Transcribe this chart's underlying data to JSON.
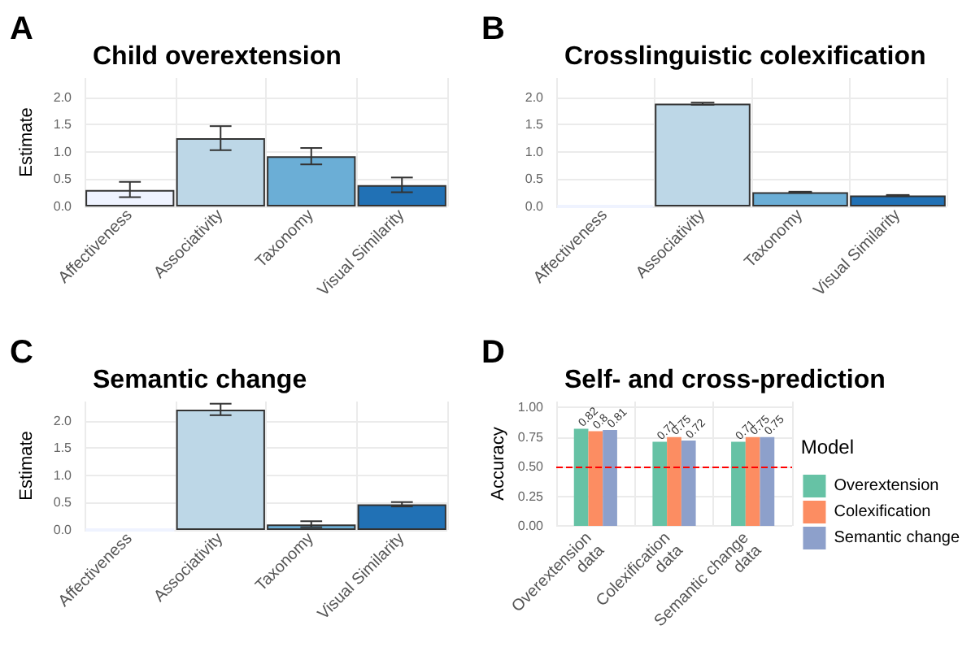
{
  "chart_data": [
    {
      "type": "bar",
      "title": "Child overextension",
      "annotations": [
        "A"
      ],
      "ylabel": "Estimate",
      "categories": [
        "Affectiveness",
        "Associativity",
        "Taxonomy",
        "Visual Similarity"
      ],
      "values": [
        0.3,
        1.25,
        0.92,
        0.39
      ],
      "colors": [
        "#eff3ff",
        "#bdd7e7",
        "#6baed6",
        "#2171b5"
      ],
      "errors": [
        [
          0.17,
          0.45
        ],
        [
          1.03,
          1.47
        ],
        [
          0.77,
          1.07
        ],
        [
          0.26,
          0.53
        ]
      ],
      "ylim": [
        0,
        2.35
      ],
      "yticks": [
        {
          "value": 0,
          "label": "0.0"
        },
        {
          "value": 0.5,
          "label": "0.5"
        },
        {
          "value": 1,
          "label": "1.0"
        },
        {
          "value": 1.5,
          "label": "1.5"
        },
        {
          "value": 2,
          "label": "2.0"
        }
      ],
      "grid": true
    },
    {
      "type": "bar",
      "title": "Crosslinguistic colexification",
      "annotations": [
        "B"
      ],
      "categories": [
        "Affectiveness",
        "Associativity",
        "Taxonomy",
        "Visual Similarity"
      ],
      "values": [
        0,
        1.88,
        0.26,
        0.2
      ],
      "colors": [
        "#eff3ff",
        "#bdd7e7",
        "#6baed6",
        "#2171b5"
      ],
      "errors": [
        null,
        [
          1.86,
          1.9
        ],
        [
          0.25,
          0.27
        ],
        [
          0.19,
          0.21
        ]
      ],
      "ylim": [
        0,
        2.35
      ],
      "yticks": [
        {
          "value": 0,
          "label": "0.0"
        },
        {
          "value": 0.5,
          "label": "0.5"
        },
        {
          "value": 1,
          "label": "1.0"
        },
        {
          "value": 1.5,
          "label": "1.5"
        },
        {
          "value": 2,
          "label": "2.0"
        }
      ],
      "grid": true
    },
    {
      "type": "bar",
      "title": "Semantic change",
      "annotations": [
        "C"
      ],
      "ylabel": "Estimate",
      "categories": [
        "Affectiveness",
        "Associativity",
        "Taxonomy",
        "Visual Similarity"
      ],
      "values": [
        0,
        2.2,
        0.1,
        0.47
      ],
      "colors": [
        "#eff3ff",
        "#bdd7e7",
        "#6baed6",
        "#2171b5"
      ],
      "errors": [
        null,
        [
          2.1,
          2.31
        ],
        [
          0.05,
          0.16
        ],
        [
          0.43,
          0.51
        ]
      ],
      "ylim": [
        0,
        2.35
      ],
      "yticks": [
        {
          "value": 0,
          "label": "0.0"
        },
        {
          "value": 0.5,
          "label": "0.5"
        },
        {
          "value": 1,
          "label": "1.0"
        },
        {
          "value": 1.5,
          "label": "1.5"
        },
        {
          "value": 2,
          "label": "2.0"
        }
      ],
      "grid": true
    },
    {
      "type": "bar",
      "title": "Self- and cross-prediction",
      "annotations": [
        "D"
      ],
      "ylabel": "Accuracy",
      "legend_title": "Model",
      "legend": "right",
      "categories": [
        "Overextension\ndata",
        "Colexification\ndata",
        "Semantic change\ndata"
      ],
      "series": [
        {
          "name": "Overextension",
          "color": "#66c2a5",
          "values": [
            0.82,
            0.71,
            0.71
          ]
        },
        {
          "name": "Colexification",
          "color": "#fc8d62",
          "values": [
            0.8,
            0.75,
            0.75
          ]
        },
        {
          "name": "Semantic change",
          "color": "#8da0cb",
          "values": [
            0.81,
            0.72,
            0.75
          ]
        }
      ],
      "data_labels": true,
      "ref_lines": [
        {
          "axis": "y",
          "value": 0.5,
          "color": "#ff0000",
          "line_style": "dashed"
        }
      ],
      "ylim": [
        0,
        1.05
      ],
      "yticks": [
        {
          "value": 0,
          "label": "0.00"
        },
        {
          "value": 0.25,
          "label": "0.25"
        },
        {
          "value": 0.5,
          "label": "0.50"
        },
        {
          "value": 0.75,
          "label": "0.75"
        },
        {
          "value": 1,
          "label": "1.00"
        }
      ],
      "grid": true
    }
  ]
}
